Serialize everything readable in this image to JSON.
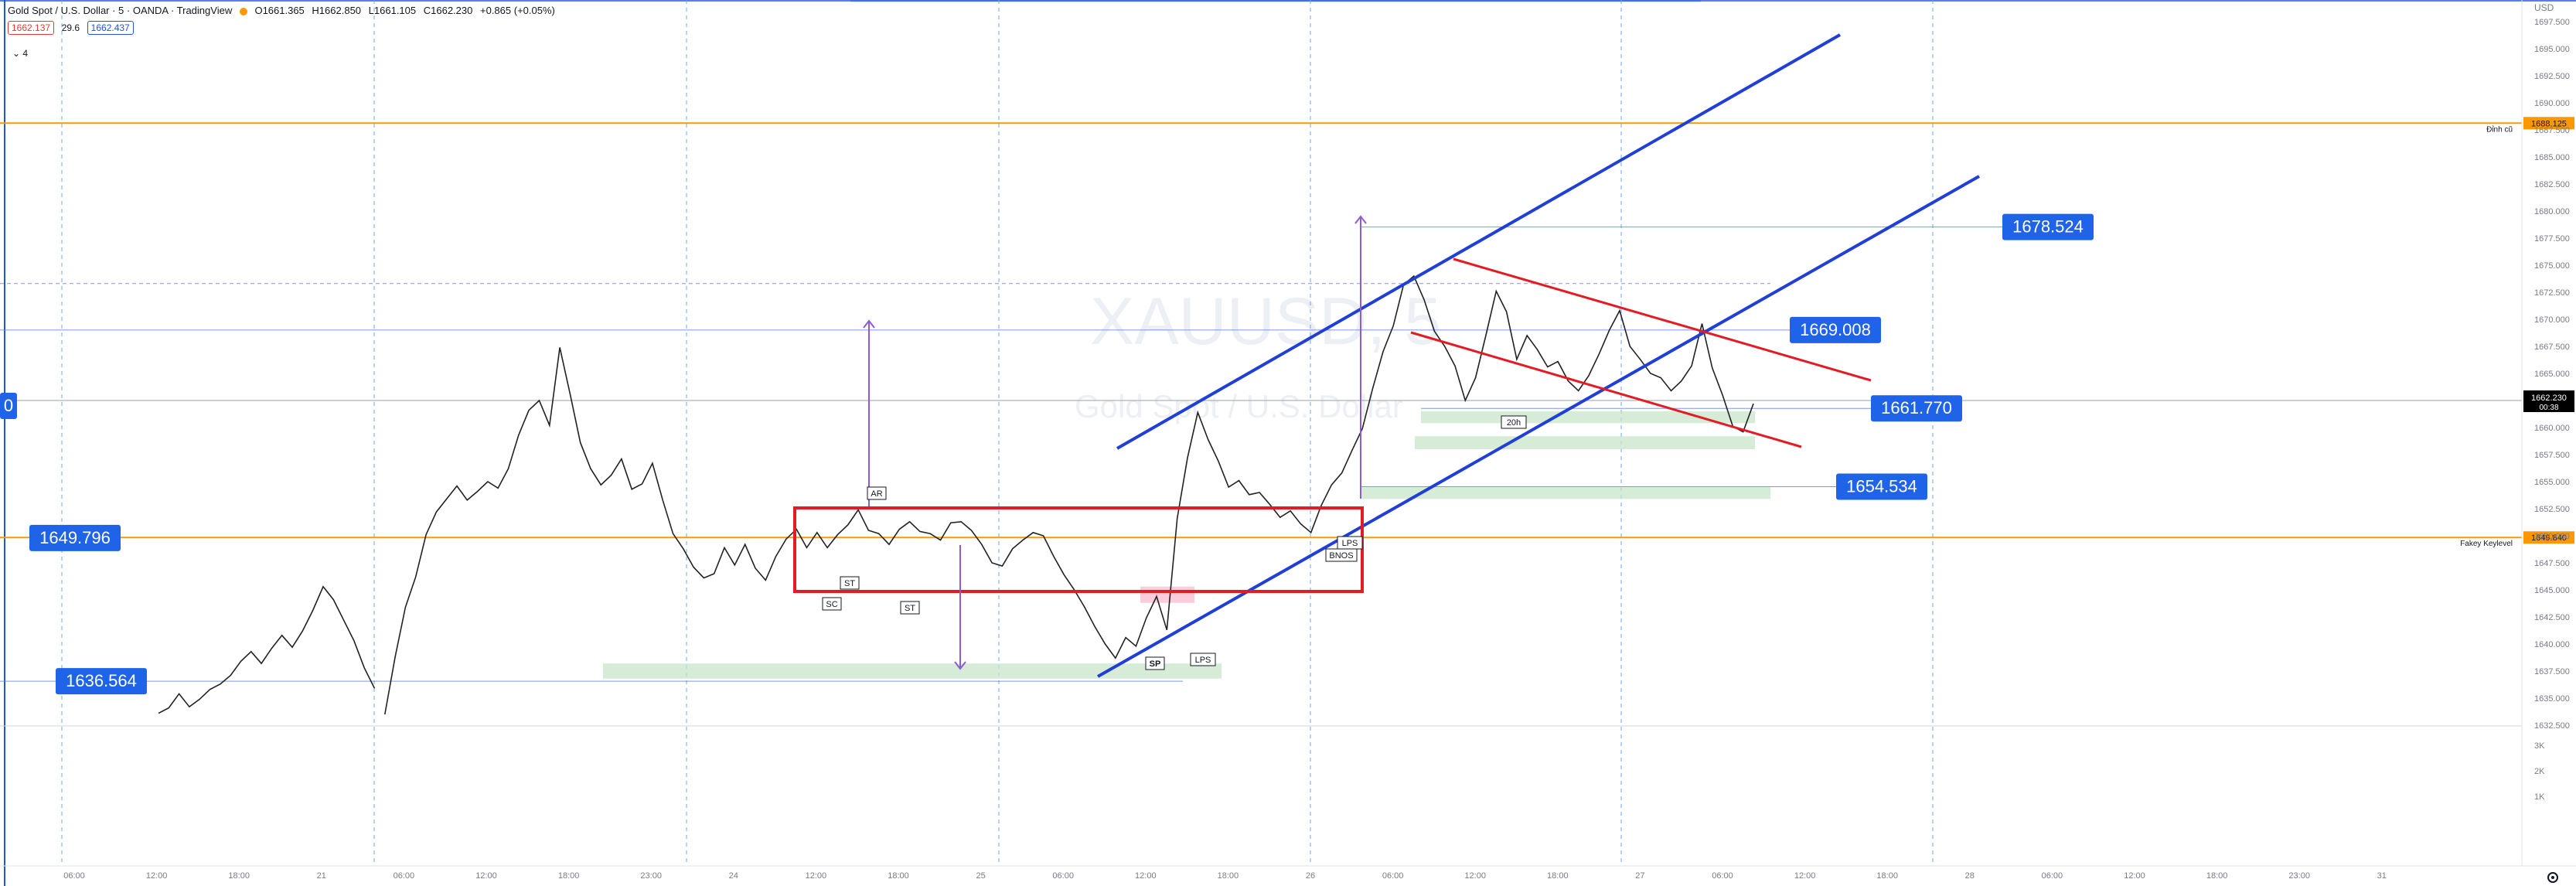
{
  "header": {
    "symbol_title": "Gold Spot / U.S. Dollar · 5 · OANDA · TradingView",
    "open": "O1661.365",
    "high": "H1662.850",
    "low": "L1661.105",
    "close": "C1662.230",
    "change": "+0.865 (+0.05%)",
    "sell_price": "1662.137",
    "spread": "29.6",
    "buy_price": "1662.437",
    "indicators_count": "4"
  },
  "watermark": {
    "symbol": "XAUUSD, 5",
    "description": "Gold Spot / U.S. Dollar"
  },
  "axis": {
    "currency": "USD",
    "current_price": "1662.230",
    "countdown": "00:38"
  },
  "chart_data": {
    "type": "line",
    "instrument": "XAUUSD",
    "y_ticks": [
      "1697.500",
      "1695.000",
      "1692.500",
      "1690.000",
      "1687.500",
      "1685.000",
      "1682.500",
      "1680.000",
      "1677.500",
      "1675.000",
      "1672.500",
      "1670.000",
      "1667.500",
      "1665.000",
      "1662.500",
      "1660.000",
      "1657.500",
      "1655.000",
      "1652.500",
      "1650.000",
      "1647.500",
      "1645.000",
      "1642.500",
      "1640.000",
      "1637.500",
      "1635.000",
      "1632.500"
    ],
    "ylim": [
      1632.5,
      1699.5
    ],
    "x_ticks": [
      "06:00",
      "12:00",
      "18:00",
      "21",
      "06:00",
      "12:00",
      "18:00",
      "23:00",
      "24",
      "12:00",
      "18:00",
      "25",
      "06:00",
      "12:00",
      "18:00",
      "26",
      "06:00",
      "12:00",
      "18:00",
      "27",
      "06:00",
      "12:00",
      "18:00",
      "28",
      "06:00",
      "12:00",
      "18:00",
      "23:00",
      "31"
    ],
    "volume_ticks": [
      "3K",
      "2K",
      "1K"
    ],
    "horizontal_levels": [
      {
        "price": 1688.125,
        "label": "1688.125",
        "note": "Đỉnh cũ",
        "color": "#ff9800"
      },
      {
        "price": 1649.84,
        "label": "1649.840",
        "note": "Fakey Keylevel",
        "color": "#ff9800"
      }
    ],
    "price_labels": [
      {
        "text": "1678.524",
        "price": 1678.524
      },
      {
        "text": "1669.008",
        "price": 1669.008
      },
      {
        "text": "1661.770",
        "price": 1661.77
      },
      {
        "text": "1654.534",
        "price": 1654.534
      },
      {
        "text": "1649.796",
        "price": 1649.796
      },
      {
        "text": "1636.564",
        "price": 1636.564
      },
      {
        "text": "0",
        "price": 1662.0
      }
    ],
    "annotations": [
      "AR",
      "SC",
      "ST",
      "ST",
      "SP",
      "LPS",
      "LPS",
      "BNOS",
      "20h"
    ],
    "series": [
      {
        "values": [
          1633.6,
          1634.1,
          1635.4,
          1634.2,
          1634.9,
          1635.8,
          1636.3,
          1637.1,
          1638.4,
          1639.3,
          1638.2,
          1639.6,
          1640.8,
          1639.7,
          1641.2,
          1643.1,
          1645.3,
          1644.1,
          1642.2,
          1640.3,
          1637.8,
          1635.9,
          1633.5,
          1638.8,
          1643.4,
          1646.2,
          1650.1,
          1652.2,
          1653.4,
          1654.6,
          1653.3,
          1654.1,
          1655.0,
          1654.4,
          1656.2,
          1659.3,
          1661.6,
          1662.5,
          1660.2,
          1667.4,
          1663.1,
          1658.6,
          1656.2,
          1654.7,
          1655.6,
          1657.1,
          1654.3,
          1654.8,
          1656.7,
          1653.3,
          1650.2,
          1648.8,
          1647.1,
          1646.1,
          1646.5,
          1648.9,
          1647.3,
          1649.2,
          1647.0,
          1645.9,
          1648.1,
          1649.7,
          1650.6,
          1648.9,
          1650.3,
          1648.9,
          1650.1,
          1651.0,
          1652.4,
          1650.5,
          1650.2,
          1649.2,
          1650.6,
          1651.3,
          1650.4,
          1650.2,
          1649.6,
          1651.2,
          1651.3,
          1650.5,
          1649.2,
          1647.5,
          1647.2,
          1648.8,
          1649.6,
          1650.3,
          1650.0,
          1648.1,
          1646.4,
          1645.0,
          1643.4,
          1641.6,
          1640.0,
          1638.7,
          1640.6,
          1639.8,
          1642.4,
          1644.4,
          1641.3,
          1651.6,
          1657.2,
          1661.4,
          1658.9,
          1656.9,
          1654.5,
          1655.1,
          1653.8,
          1654.0,
          1652.9,
          1651.7,
          1652.3,
          1651.1,
          1650.3,
          1652.8,
          1654.7,
          1655.8,
          1657.9,
          1659.9,
          1663.6,
          1667.0,
          1669.4,
          1673.2,
          1674.0,
          1671.8,
          1668.9,
          1667.5,
          1665.7,
          1662.5,
          1664.6,
          1668.5,
          1672.6,
          1670.7,
          1666.3,
          1668.5,
          1667.2,
          1665.6,
          1666.1,
          1664.3,
          1663.4,
          1664.8,
          1666.8,
          1669.0,
          1670.8,
          1667.5,
          1666.3,
          1665.0,
          1664.6,
          1663.4,
          1664.3,
          1665.7,
          1669.6,
          1665.5,
          1663.0,
          1660.1,
          1659.6,
          1662.2
        ]
      }
    ]
  }
}
